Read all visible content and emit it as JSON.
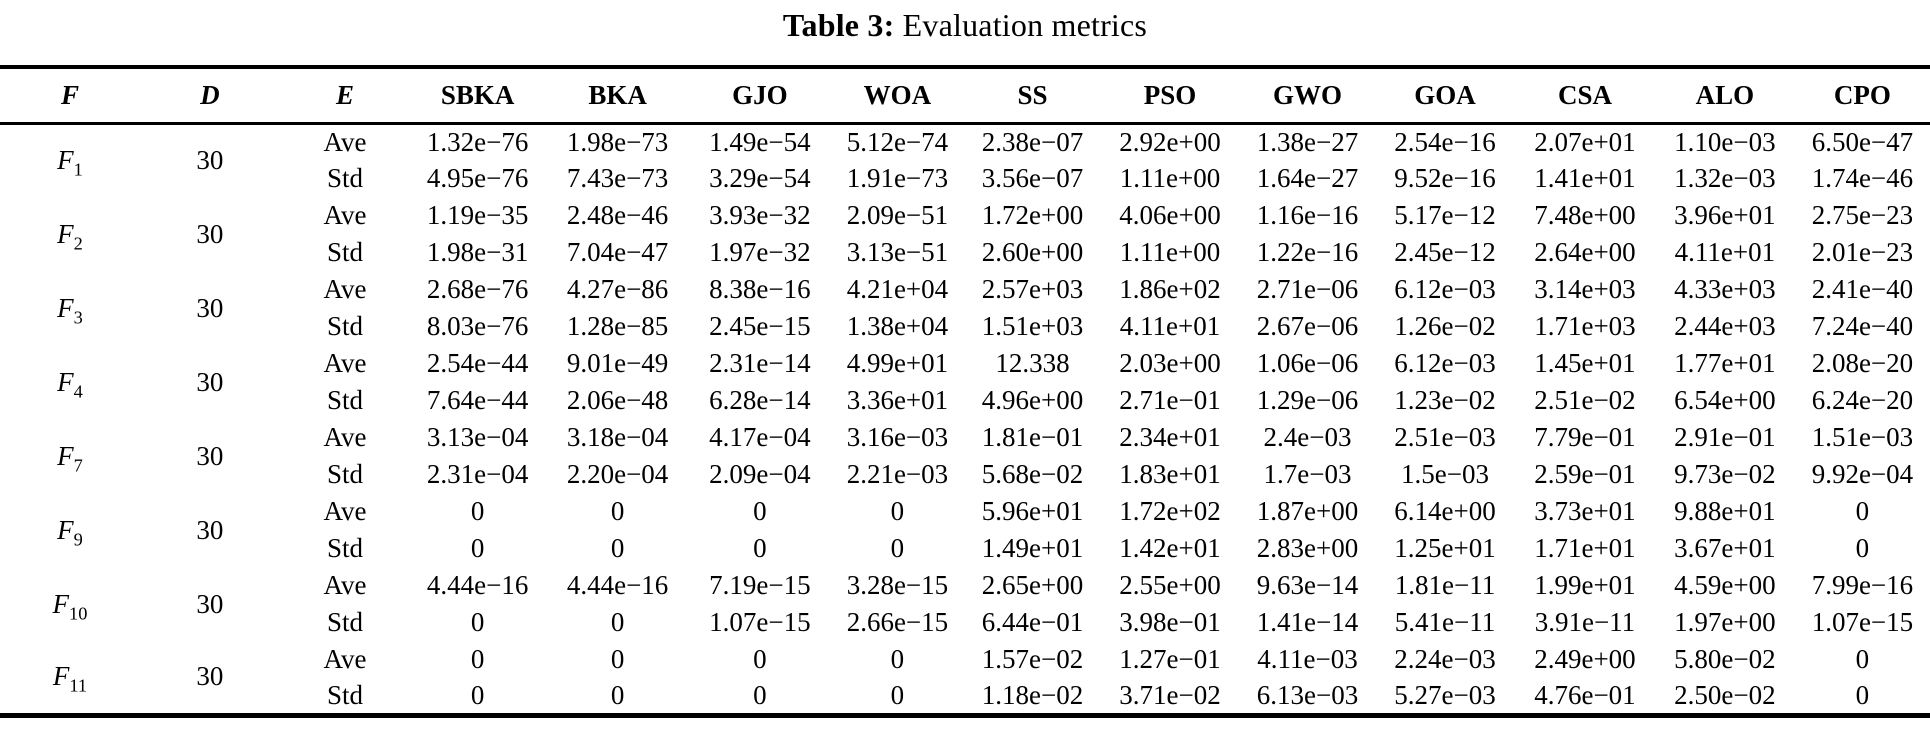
{
  "title": {
    "label": "Table 3:",
    "text": "Evaluation metrics"
  },
  "table": {
    "headers": [
      "F",
      "D",
      "E",
      "SBKA",
      "BKA",
      "GJO",
      "WOA",
      "SS",
      "PSO",
      "GWO",
      "GOA",
      "CSA",
      "ALO",
      "CPO"
    ],
    "math_header_count": 3,
    "stat_labels": [
      "Ave",
      "Std"
    ],
    "functions": [
      {
        "name": "F",
        "sub": "1",
        "dimension": "30",
        "ave": [
          "1.32e−76",
          "1.98e−73",
          "1.49e−54",
          "5.12e−74",
          "2.38e−07",
          "2.92e+00",
          "1.38e−27",
          "2.54e−16",
          "2.07e+01",
          "1.10e−03",
          "6.50e−47"
        ],
        "std": [
          "4.95e−76",
          "7.43e−73",
          "3.29e−54",
          "1.91e−73",
          "3.56e−07",
          "1.11e+00",
          "1.64e−27",
          "9.52e−16",
          "1.41e+01",
          "1.32e−03",
          "1.74e−46"
        ]
      },
      {
        "name": "F",
        "sub": "2",
        "dimension": "30",
        "ave": [
          "1.19e−35",
          "2.48e−46",
          "3.93e−32",
          "2.09e−51",
          "1.72e+00",
          "4.06e+00",
          "1.16e−16",
          "5.17e−12",
          "7.48e+00",
          "3.96e+01",
          "2.75e−23"
        ],
        "std": [
          "1.98e−31",
          "7.04e−47",
          "1.97e−32",
          "3.13e−51",
          "2.60e+00",
          "1.11e+00",
          "1.22e−16",
          "2.45e−12",
          "2.64e+00",
          "4.11e+01",
          "2.01e−23"
        ]
      },
      {
        "name": "F",
        "sub": "3",
        "dimension": "30",
        "ave": [
          "2.68e−76",
          "4.27e−86",
          "8.38e−16",
          "4.21e+04",
          "2.57e+03",
          "1.86e+02",
          "2.71e−06",
          "6.12e−03",
          "3.14e+03",
          "4.33e+03",
          "2.41e−40"
        ],
        "std": [
          "8.03e−76",
          "1.28e−85",
          "2.45e−15",
          "1.38e+04",
          "1.51e+03",
          "4.11e+01",
          "2.67e−06",
          "1.26e−02",
          "1.71e+03",
          "2.44e+03",
          "7.24e−40"
        ]
      },
      {
        "name": "F",
        "sub": "4",
        "dimension": "30",
        "ave": [
          "2.54e−44",
          "9.01e−49",
          "2.31e−14",
          "4.99e+01",
          "12.338",
          "2.03e+00",
          "1.06e−06",
          "6.12e−03",
          "1.45e+01",
          "1.77e+01",
          "2.08e−20"
        ],
        "std": [
          "7.64e−44",
          "2.06e−48",
          "6.28e−14",
          "3.36e+01",
          "4.96e+00",
          "2.71e−01",
          "1.29e−06",
          "1.23e−02",
          "2.51e−02",
          "6.54e+00",
          "6.24e−20"
        ]
      },
      {
        "name": "F",
        "sub": "7",
        "dimension": "30",
        "ave": [
          "3.13e−04",
          "3.18e−04",
          "4.17e−04",
          "3.16e−03",
          "1.81e−01",
          "2.34e+01",
          "2.4e−03",
          "2.51e−03",
          "7.79e−01",
          "2.91e−01",
          "1.51e−03"
        ],
        "std": [
          "2.31e−04",
          "2.20e−04",
          "2.09e−04",
          "2.21e−03",
          "5.68e−02",
          "1.83e+01",
          "1.7e−03",
          "1.5e−03",
          "2.59e−01",
          "9.73e−02",
          "9.92e−04"
        ]
      },
      {
        "name": "F",
        "sub": "9",
        "dimension": "30",
        "ave": [
          "0",
          "0",
          "0",
          "0",
          "5.96e+01",
          "1.72e+02",
          "1.87e+00",
          "6.14e+00",
          "3.73e+01",
          "9.88e+01",
          "0"
        ],
        "std": [
          "0",
          "0",
          "0",
          "0",
          "1.49e+01",
          "1.42e+01",
          "2.83e+00",
          "1.25e+01",
          "1.71e+01",
          "3.67e+01",
          "0"
        ]
      },
      {
        "name": "F",
        "sub": "10",
        "dimension": "30",
        "ave": [
          "4.44e−16",
          "4.44e−16",
          "7.19e−15",
          "3.28e−15",
          "2.65e+00",
          "2.55e+00",
          "9.63e−14",
          "1.81e−11",
          "1.99e+01",
          "4.59e+00",
          "7.99e−16"
        ],
        "std": [
          "0",
          "0",
          "1.07e−15",
          "2.66e−15",
          "6.44e−01",
          "3.98e−01",
          "1.41e−14",
          "5.41e−11",
          "3.91e−11",
          "1.97e+00",
          "1.07e−15"
        ]
      },
      {
        "name": "F",
        "sub": "11",
        "dimension": "30",
        "ave": [
          "0",
          "0",
          "0",
          "0",
          "1.57e−02",
          "1.27e−01",
          "4.11e−03",
          "2.24e−03",
          "2.49e+00",
          "5.80e−02",
          "0"
        ],
        "std": [
          "0",
          "0",
          "0",
          "0",
          "1.18e−02",
          "3.71e−02",
          "6.13e−03",
          "5.27e−03",
          "4.76e−01",
          "2.50e−02",
          "0"
        ]
      }
    ],
    "column_widths_pct": [
      7.25,
      7.25,
      6.75,
      7,
      7.5,
      7.25,
      7,
      7,
      7.25,
      7,
      7.25,
      7.25,
      7.25,
      7
    ]
  }
}
